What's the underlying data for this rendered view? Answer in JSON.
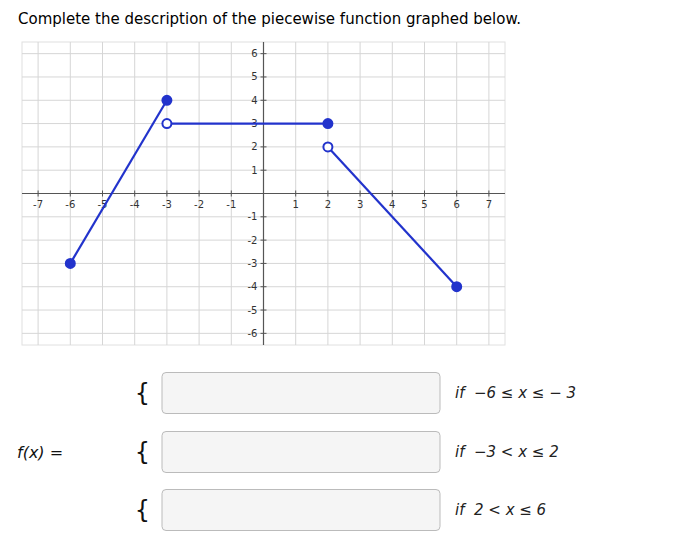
{
  "chart_data": {
    "type": "line",
    "title": "Complete the description of the piecewise function graphed below.",
    "xlim": [
      -7.5,
      7.5
    ],
    "ylim": [
      -6.5,
      6.5
    ],
    "xticks": [
      -7,
      -6,
      -5,
      -4,
      -3,
      -2,
      -1,
      1,
      2,
      3,
      4,
      5,
      6,
      7
    ],
    "yticks": [
      -6,
      -5,
      -4,
      -3,
      -2,
      -1,
      1,
      2,
      3,
      4,
      5,
      6
    ],
    "grid": true,
    "series": [
      {
        "x": [
          -6,
          -3
        ],
        "values": [
          -3,
          4
        ],
        "color": "#2233cc",
        "marker": "closed-closed"
      },
      {
        "x": [
          -3,
          2
        ],
        "values": [
          3,
          3
        ],
        "color": "#2233cc",
        "marker": "open-closed"
      },
      {
        "x": [
          2,
          6
        ],
        "values": [
          2,
          -4
        ],
        "color": "#2233cc",
        "marker": "open-closed"
      }
    ],
    "annotations": {
      "label": "f(x) =",
      "brace": "{",
      "conditions": [
        "if  −6 ≤ x ≤ − 3",
        "if  −3 < x ≤ 2",
        "if  2 < x ≤ 6"
      ]
    }
  }
}
